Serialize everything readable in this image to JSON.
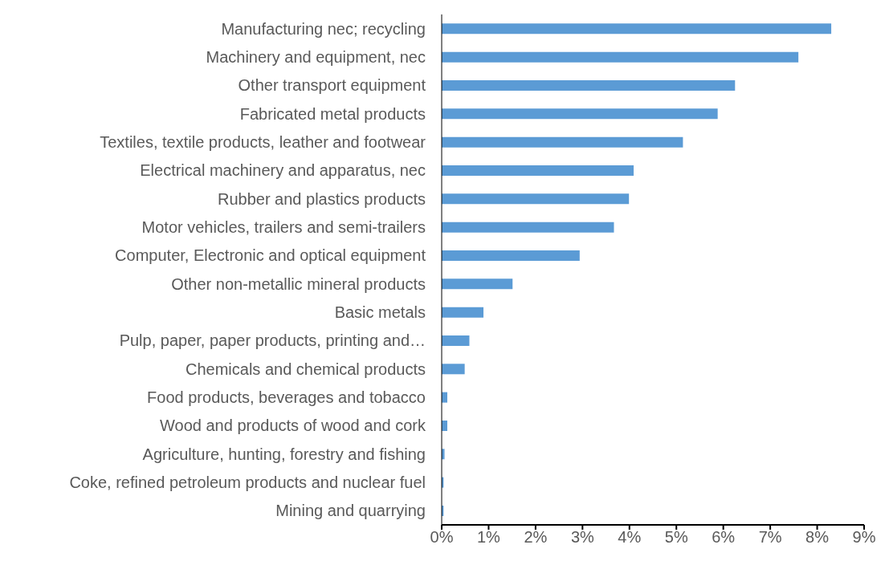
{
  "chart_data": {
    "type": "bar",
    "orientation": "horizontal",
    "categories": [
      "Manufacturing nec; recycling",
      "Machinery and equipment, nec",
      "Other transport equipment",
      "Fabricated metal products",
      "Textiles, textile products, leather and footwear",
      "Electrical machinery and apparatus, nec",
      "Rubber and plastics products",
      "Motor vehicles, trailers and semi-trailers",
      "Computer, Electronic and optical equipment",
      "Other non-metallic mineral products",
      "Basic metals",
      "Pulp, paper, paper products, printing and…",
      "Chemicals and chemical products",
      "Food products, beverages and tobacco",
      "Wood and products of wood and cork",
      "Agriculture, hunting, forestry and fishing",
      "Coke, refined petroleum products and nuclear fuel",
      "Mining and quarrying"
    ],
    "values": [
      8.3,
      7.6,
      6.25,
      5.88,
      5.14,
      4.09,
      3.99,
      3.67,
      2.94,
      1.51,
      0.89,
      0.59,
      0.49,
      0.12,
      0.12,
      0.06,
      0.04,
      0.04
    ],
    "color": "#5b9bd5",
    "xlim": [
      0,
      9
    ],
    "xticks": [
      {
        "value": 0,
        "label": "0%"
      },
      {
        "value": 1,
        "label": "1%"
      },
      {
        "value": 2,
        "label": "2%"
      },
      {
        "value": 3,
        "label": "3%"
      },
      {
        "value": 4,
        "label": "4%"
      },
      {
        "value": 5,
        "label": "5%"
      },
      {
        "value": 6,
        "label": "6%"
      },
      {
        "value": 7,
        "label": "7%"
      },
      {
        "value": 8,
        "label": "8%"
      },
      {
        "value": 9,
        "label": "9%"
      }
    ],
    "grid": false,
    "legend": false
  }
}
